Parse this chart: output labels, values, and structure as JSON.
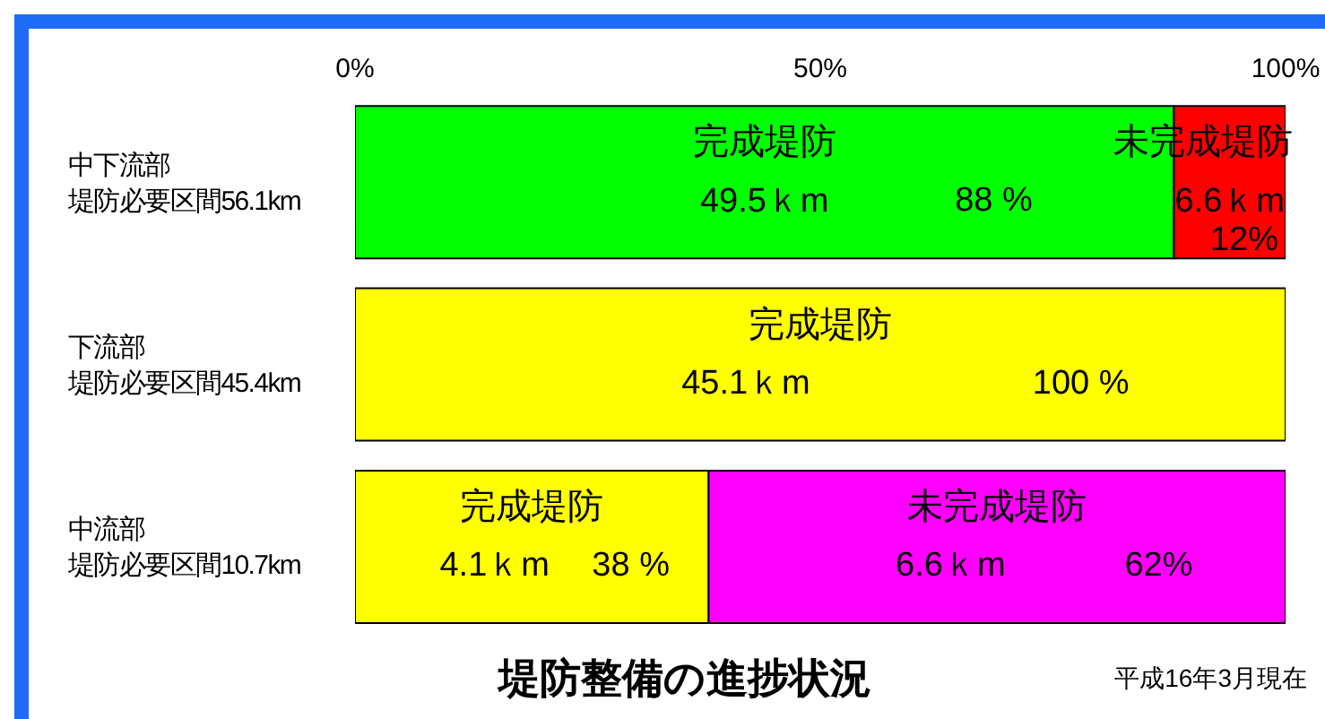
{
  "chart_data": {
    "type": "bar",
    "orientation": "horizontal",
    "stacked": true,
    "title": "堤防整備の進捗状況",
    "categories": [
      "中下流部堤防必要区間56.1km",
      "下流部堤防必要区間45.4km",
      "中流部堤防必要区間10.7km"
    ],
    "series": [
      {
        "name": "完成堤防",
        "colors": [
          "#00ff00",
          "#ffff00",
          "#ffff00"
        ],
        "values": [
          88,
          100,
          38
        ],
        "value_labels": [
          "88 %",
          "100 %",
          "38 %"
        ]
      },
      {
        "name": "未完成堤防",
        "colors": [
          "#ff0000",
          "#ff00ff",
          "#ff00ff"
        ],
        "values": [
          12,
          null,
          62
        ],
        "value_labels": [
          "12%",
          null,
          "62%"
        ]
      }
    ],
    "xlim": [
      0,
      100
    ],
    "xticks": [
      {
        "value": 0,
        "label": "0%"
      },
      {
        "value": 50,
        "label": "50%"
      },
      {
        "value": 100,
        "label": "100%"
      }
    ],
    "grid": false,
    "legend": false,
    "annotations": [
      {
        "text": "49.5ｋm",
        "x": 44,
        "y": "中下流部堤防必要区間56.1km"
      },
      {
        "text": "6.6ｋm",
        "x": 94,
        "y": "中下流部堤防必要区間56.1km"
      },
      {
        "text": "45.1ｋm",
        "x": 42,
        "y": "下流部堤防必要区間45.4km"
      },
      {
        "text": "4.1ｋm",
        "x": 15,
        "y": "中流部堤防必要区間10.7km"
      },
      {
        "text": "6.6ｋm",
        "x": 64,
        "y": "中流部堤防必要区間10.7km"
      },
      "平成16年3月現在"
    ]
  }
}
